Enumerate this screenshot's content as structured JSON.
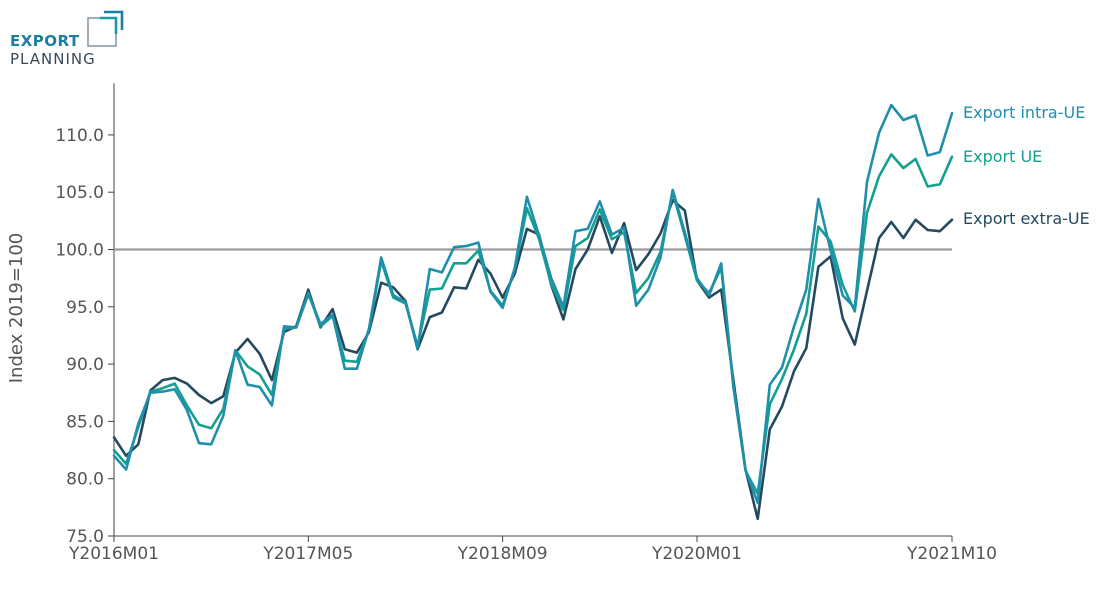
{
  "logo": {
    "line1": "EXPORT",
    "line2": "PLANNING"
  },
  "chart_data": {
    "type": "line",
    "ylabel": "Index 2019=100",
    "xlabel": "",
    "ylim": [
      75,
      114.5
    ],
    "yticks": [
      "75.0",
      "80.0",
      "85.0",
      "90.0",
      "95.0",
      "100.0",
      "105.0",
      "110.0"
    ],
    "xtick_labels": [
      {
        "index": 0,
        "label": "Y2016M01"
      },
      {
        "index": 16,
        "label": "Y2017M05"
      },
      {
        "index": 32,
        "label": "Y2018M09"
      },
      {
        "index": 48,
        "label": "Y2020M01"
      },
      {
        "index": 69,
        "label": "Y2021M10"
      }
    ],
    "n_points": 70,
    "reference_line": 100,
    "grid": false,
    "legend": "right, end of lines",
    "series": [
      {
        "name": "Export intra-UE",
        "color": "#1f8fab",
        "values": [
          82.0,
          80.8,
          84.8,
          87.5,
          87.6,
          87.8,
          86.0,
          83.1,
          83.0,
          85.5,
          91.2,
          88.2,
          88.0,
          86.4,
          93.3,
          93.2,
          96.1,
          93.5,
          94.3,
          89.6,
          89.6,
          93.1,
          99.3,
          96.0,
          95.4,
          91.4,
          98.3,
          98.0,
          100.2,
          100.3,
          100.6,
          96.3,
          94.9,
          98.4,
          104.6,
          101.2,
          97.5,
          95.0,
          101.6,
          101.8,
          104.2,
          101.3,
          101.9,
          95.1,
          96.5,
          99.3,
          105.2,
          101.5,
          97.5,
          96.0,
          98.8,
          88.0,
          80.8,
          77.9,
          88.2,
          89.7,
          93.3,
          96.5,
          104.4,
          99.9,
          96.0,
          94.9,
          105.9,
          110.2,
          112.6,
          111.3,
          111.7,
          108.2,
          108.5,
          111.9
        ]
      },
      {
        "name": "Export UE",
        "color": "#14a090",
        "values": [
          82.5,
          81.3,
          84.5,
          87.6,
          87.9,
          88.3,
          86.4,
          84.7,
          84.4,
          86.1,
          91.2,
          89.8,
          89.1,
          87.3,
          93.1,
          93.2,
          96.2,
          93.3,
          94.2,
          90.3,
          90.2,
          93.0,
          99.0,
          95.8,
          95.3,
          91.6,
          96.5,
          96.6,
          98.8,
          98.8,
          99.9,
          96.4,
          95.1,
          98.3,
          103.6,
          100.9,
          97.0,
          94.7,
          100.3,
          101.0,
          103.5,
          100.9,
          101.5,
          96.2,
          97.5,
          99.8,
          105.0,
          101.2,
          97.3,
          96.2,
          98.4,
          88.1,
          80.7,
          78.7,
          86.5,
          88.7,
          91.3,
          94.4,
          102.0,
          100.7,
          96.9,
          94.6,
          103.2,
          106.4,
          108.3,
          107.1,
          107.9,
          105.5,
          105.7,
          108.1
        ]
      },
      {
        "name": "Export extra-UE",
        "color": "#254a60",
        "values": [
          83.6,
          82.0,
          83.0,
          87.7,
          88.6,
          88.8,
          88.3,
          87.3,
          86.6,
          87.2,
          91.0,
          92.2,
          90.9,
          88.6,
          92.8,
          93.3,
          96.5,
          93.2,
          94.8,
          91.3,
          91.0,
          92.8,
          97.1,
          96.7,
          95.5,
          91.3,
          94.1,
          94.5,
          96.7,
          96.6,
          99.1,
          97.9,
          95.8,
          97.9,
          101.8,
          101.3,
          96.9,
          93.9,
          98.3,
          100.0,
          102.9,
          99.7,
          102.3,
          98.2,
          99.6,
          101.4,
          104.3,
          103.4,
          97.3,
          95.8,
          96.5,
          88.6,
          80.8,
          76.5,
          84.3,
          86.3,
          89.4,
          91.4,
          98.5,
          99.4,
          94.0,
          91.7,
          96.4,
          101.0,
          102.4,
          101.0,
          102.6,
          101.7,
          101.6,
          102.6
        ]
      }
    ]
  }
}
